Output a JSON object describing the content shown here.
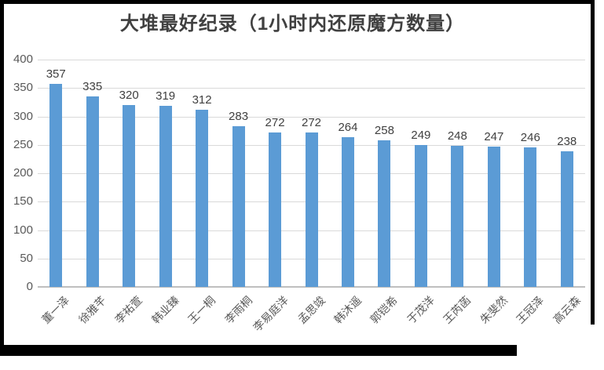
{
  "chart_data": {
    "type": "bar",
    "title": "大堆最好纪录（1小时内还原魔方数量）",
    "categories": [
      "董一泽",
      "徐雅芊",
      "李祐萱",
      "韩业臻",
      "王一桐",
      "李雨桐",
      "李易庭洋",
      "孟思竣",
      "韩沐遥",
      "郭铠希",
      "于茂洋",
      "王芮菡",
      "朱斐然",
      "王冠泽",
      "高云森"
    ],
    "values": [
      357,
      335,
      320,
      319,
      312,
      283,
      272,
      272,
      264,
      258,
      249,
      248,
      247,
      246,
      238
    ],
    "xlabel": "",
    "ylabel": "",
    "ylim": [
      0,
      400
    ],
    "yticks": [
      0,
      50,
      100,
      150,
      200,
      250,
      300,
      350,
      400
    ],
    "grid": true,
    "legend": false,
    "data_labels": true,
    "colors": {
      "bar": "#5B9BD5",
      "title": "#404040",
      "data_label": "#404040",
      "axis_tick_label": "#595959",
      "category_label": "#595959",
      "gridline": "#D9D9D9",
      "axis_line": "#BFBFBF",
      "frame": "#000000"
    }
  }
}
